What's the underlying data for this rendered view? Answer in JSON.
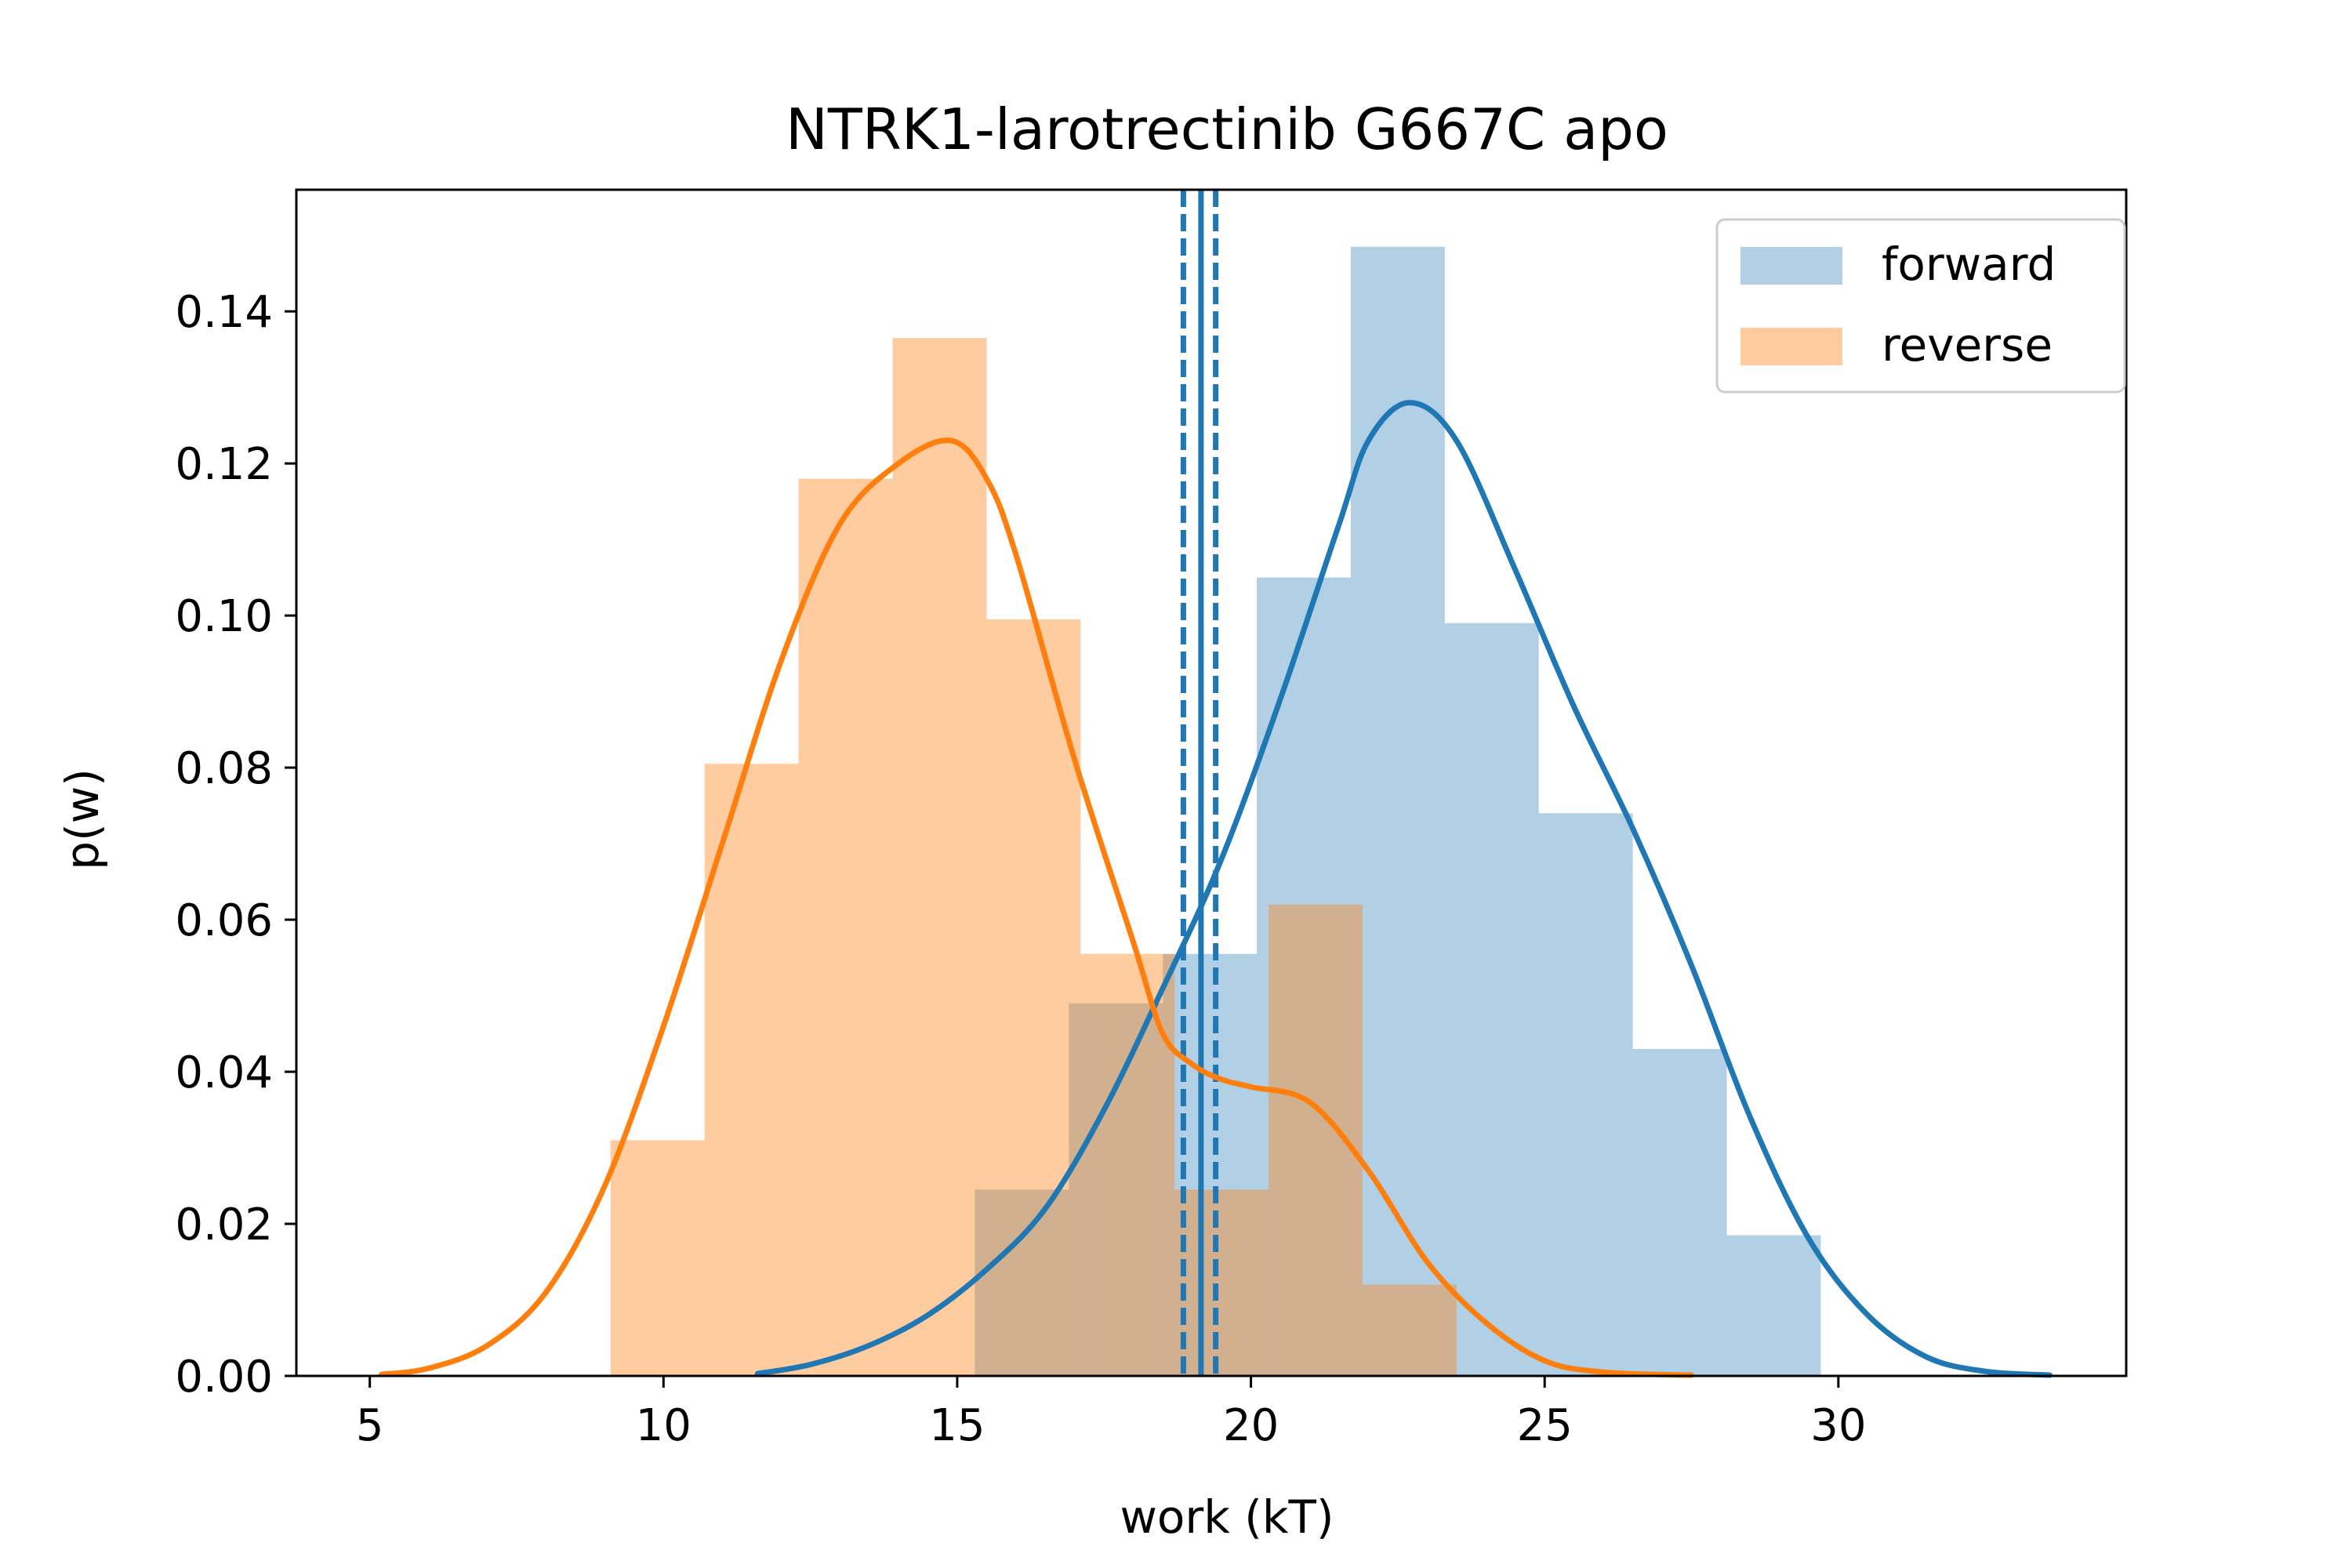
{
  "chart_data": {
    "type": "histogram",
    "title": "NTRK1-larotrectinib G667C apo",
    "xlabel": "work (kT)",
    "ylabel": "p(w)",
    "xlim": [
      3.75,
      34.9
    ],
    "ylim": [
      0,
      0.156
    ],
    "xticks": [
      5,
      10,
      15,
      20,
      25,
      30
    ],
    "yticks": [
      0.0,
      0.02,
      0.04,
      0.06,
      0.08,
      0.1,
      0.12,
      0.14
    ],
    "xtick_labels": [
      "5",
      "10",
      "15",
      "20",
      "25",
      "30"
    ],
    "ytick_labels": [
      "0.00",
      "0.02",
      "0.04",
      "0.06",
      "0.08",
      "0.10",
      "0.12",
      "0.14"
    ],
    "legend": {
      "position": "top-right",
      "entries": [
        {
          "label": "forward",
          "color": "#1f77b4"
        },
        {
          "label": "reverse",
          "color": "#ff7f0e"
        }
      ]
    },
    "colors": {
      "forward": "#1f77b4",
      "reverse": "#ff7f0e",
      "forward_bar_alpha": 0.35,
      "reverse_bar_alpha": 0.4
    },
    "series": [
      {
        "name": "forward",
        "histogram": {
          "edges": [
            15.3,
            16.9,
            18.5,
            20.1,
            21.7,
            23.3,
            24.9,
            26.5,
            28.1,
            29.7
          ],
          "heights": [
            0.0245,
            0.049,
            0.0555,
            0.105,
            0.1485,
            0.099,
            0.074,
            0.043,
            0.0185
          ]
        },
        "kde": {
          "x": [
            11.6,
            12.5,
            13.5,
            14.5,
            15.5,
            16.5,
            17.5,
            18.5,
            19.5,
            20.5,
            21.5,
            22.0,
            22.7,
            23.5,
            24.5,
            25.5,
            26.5,
            27.5,
            28.5,
            29.5,
            30.5,
            31.5,
            32.5,
            33.6
          ],
          "y": [
            0.0003,
            0.0015,
            0.004,
            0.008,
            0.014,
            0.022,
            0.035,
            0.051,
            0.068,
            0.089,
            0.112,
            0.123,
            0.128,
            0.123,
            0.106,
            0.088,
            0.072,
            0.054,
            0.034,
            0.018,
            0.008,
            0.0025,
            0.0006,
            0.0001
          ]
        }
      },
      {
        "name": "reverse",
        "histogram": {
          "edges": [
            9.1,
            10.7,
            12.3,
            13.9,
            15.5,
            17.1,
            18.7,
            20.3,
            21.9,
            23.5
          ],
          "heights": [
            0.031,
            0.0805,
            0.118,
            0.1365,
            0.0995,
            0.0555,
            0.0245,
            0.062,
            0.012
          ]
        },
        "kde": {
          "x": [
            5.2,
            6.0,
            7.0,
            8.0,
            9.0,
            10.0,
            11.0,
            12.0,
            13.0,
            14.0,
            14.9,
            15.5,
            16.0,
            17.0,
            18.0,
            18.5,
            19.0,
            19.5,
            20.0,
            21.0,
            22.0,
            23.0,
            24.0,
            25.0,
            26.0,
            27.5
          ],
          "y": [
            0.0002,
            0.001,
            0.004,
            0.011,
            0.025,
            0.046,
            0.07,
            0.094,
            0.112,
            0.12,
            0.123,
            0.118,
            0.108,
            0.081,
            0.057,
            0.045,
            0.041,
            0.039,
            0.038,
            0.036,
            0.027,
            0.015,
            0.007,
            0.002,
            0.0005,
            0.0001
          ]
        }
      }
    ],
    "vertical_lines": [
      {
        "x": 19.15,
        "style": "solid",
        "color": "#1f77b4"
      },
      {
        "x": 18.85,
        "style": "dashed",
        "color": "#1f77b4"
      },
      {
        "x": 19.4,
        "style": "dashed",
        "color": "#1f77b4"
      }
    ]
  }
}
